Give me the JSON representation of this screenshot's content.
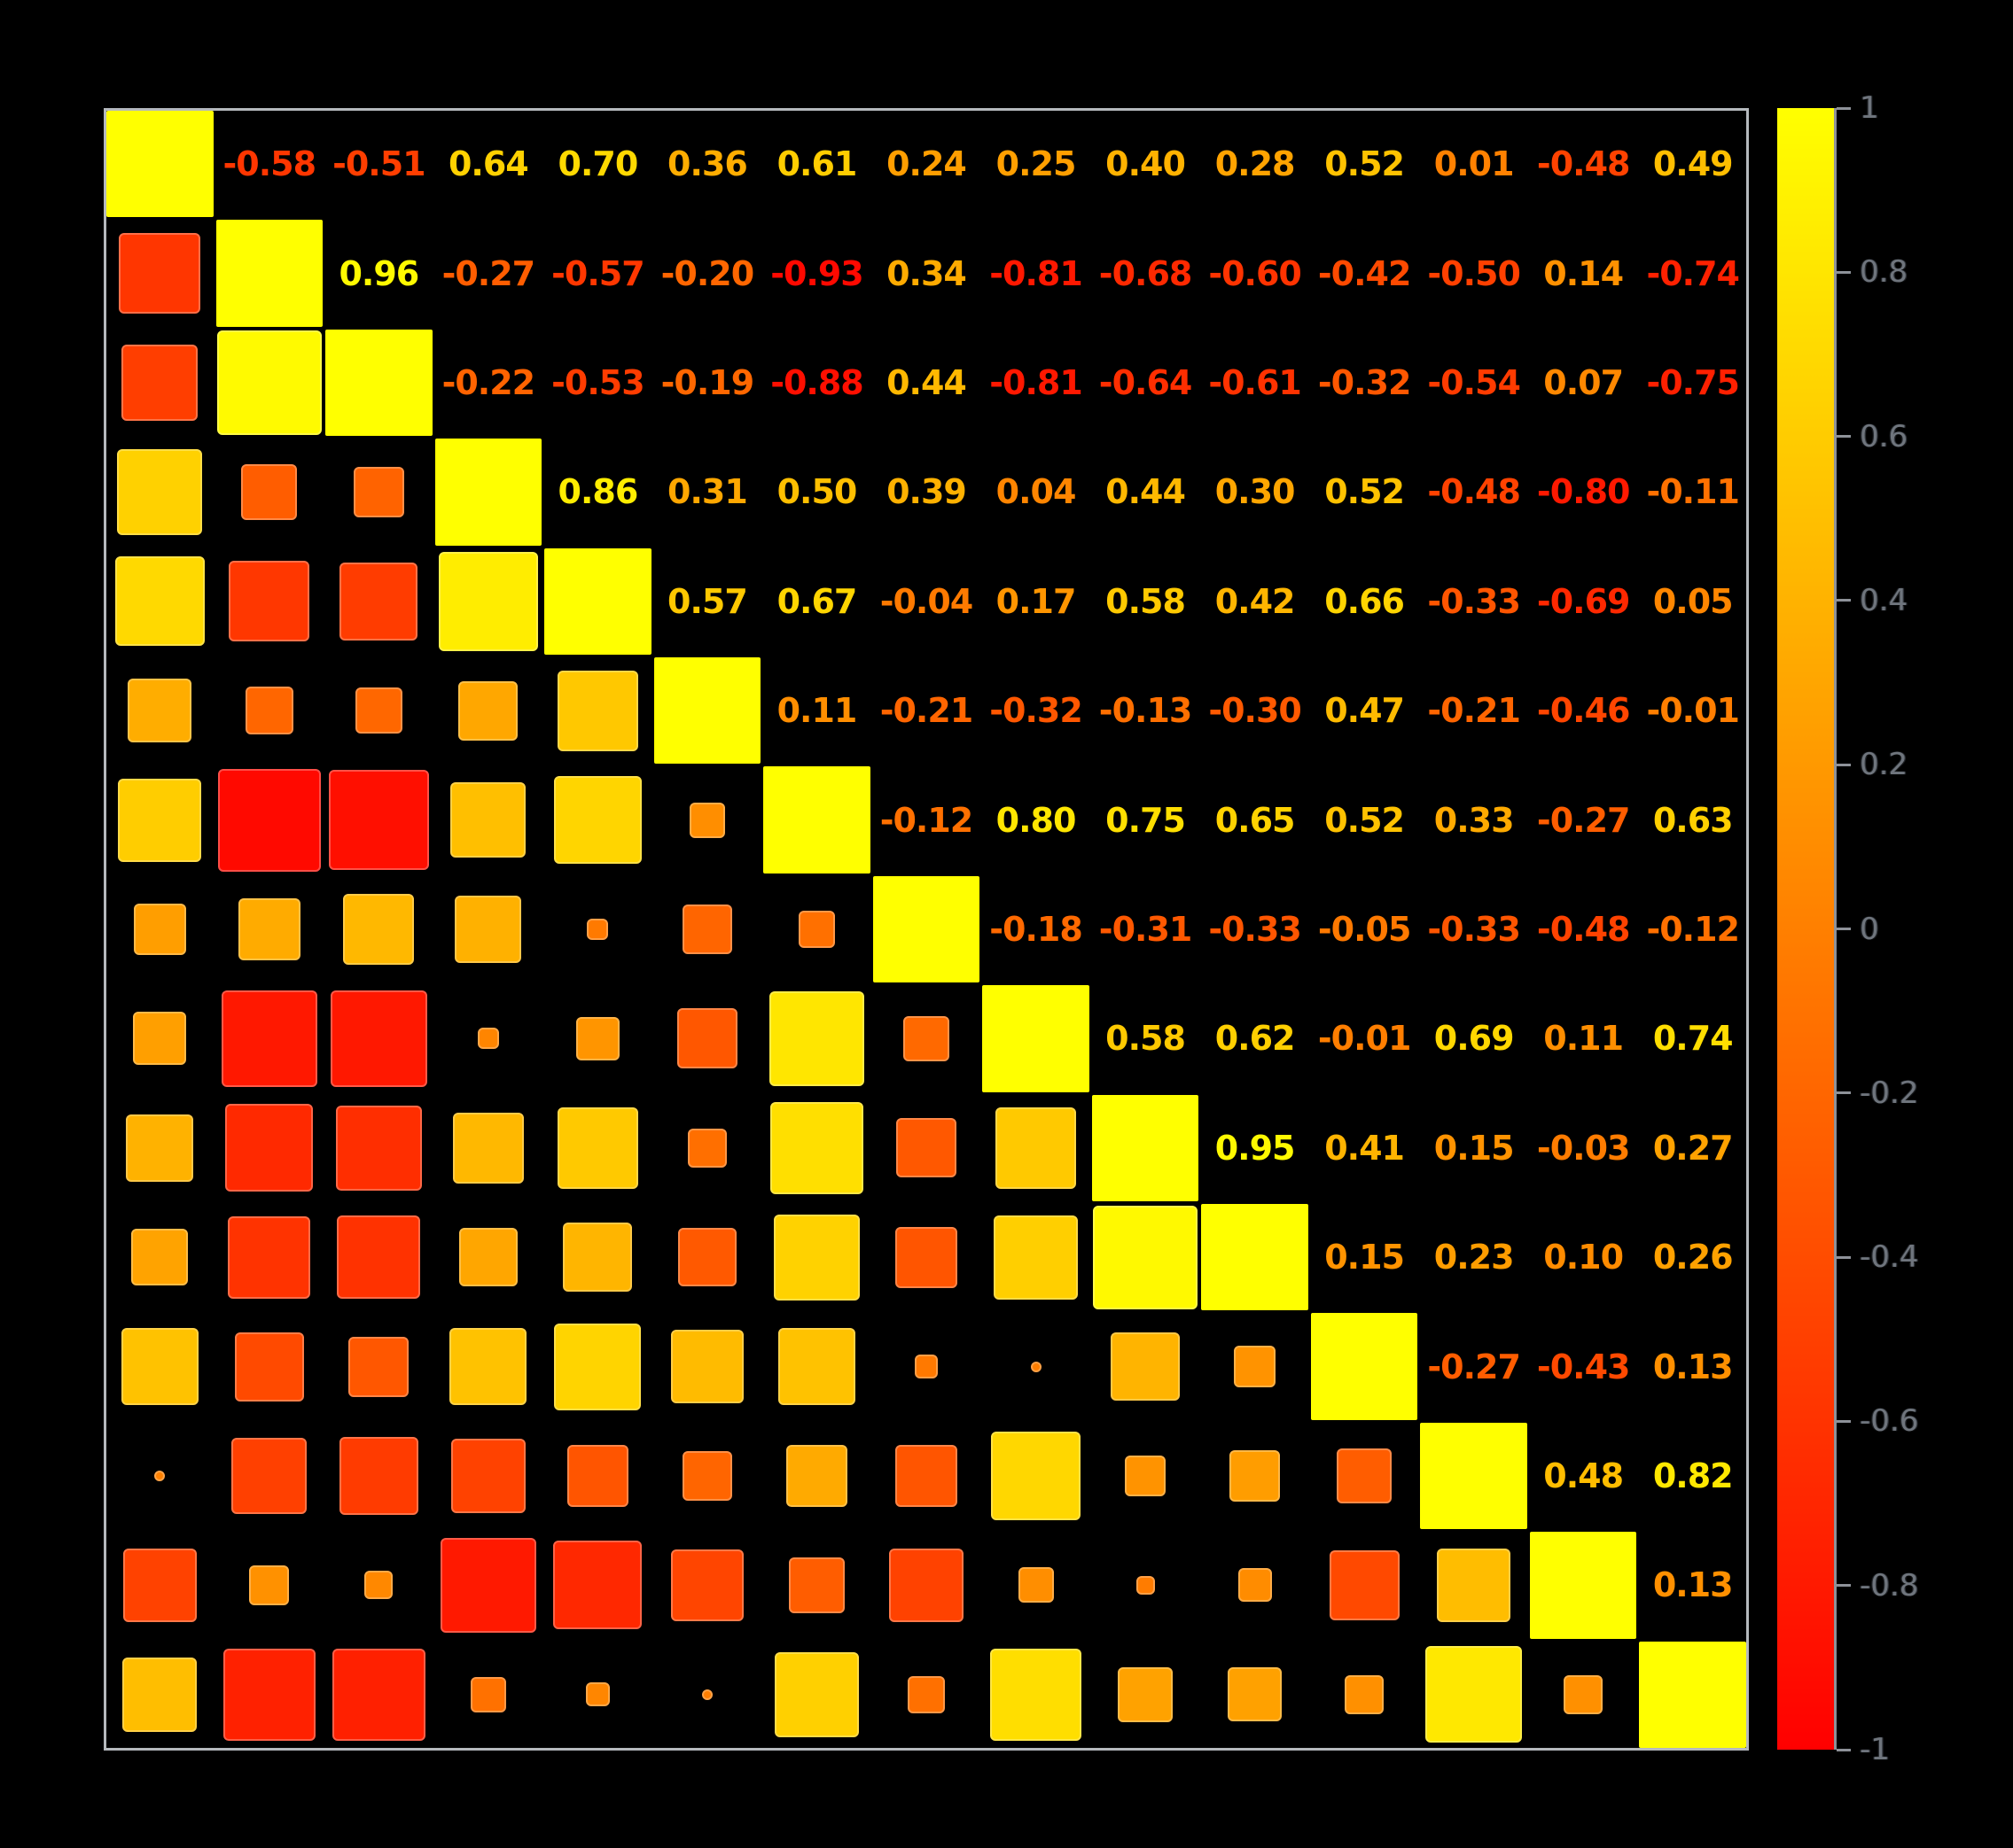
{
  "figure": {
    "background": "#000000",
    "grid_color": "#b5b9bd",
    "accent_colors": {
      "positive_end": "#FFFF00",
      "midpoint": "#FF8000",
      "negative_end": "#FF0000"
    }
  },
  "chart_data": {
    "type": "heatmap",
    "subtype": "correlation-matrix",
    "title": "",
    "size": 15,
    "display": {
      "upper_triangle": "numbers",
      "lower_triangle": "squares-scaled-by-abs-r",
      "diagonal": "full-yellow-squares"
    },
    "value_range": [
      -1,
      1
    ],
    "colormap": {
      "-1": "#FF0000",
      "0": "#FF8000",
      "1": "#FFFF00"
    },
    "upper_triangle": [
      [
        1.0,
        -0.58,
        -0.51,
        0.64,
        0.7,
        0.36,
        0.61,
        0.24,
        0.25,
        0.4,
        0.28,
        0.52,
        0.01,
        -0.48,
        0.49
      ],
      [
        1.0,
        0.96,
        -0.27,
        -0.57,
        -0.2,
        -0.93,
        0.34,
        -0.81,
        -0.68,
        -0.6,
        -0.42,
        -0.5,
        0.14,
        -0.74
      ],
      [
        1.0,
        -0.22,
        -0.53,
        -0.19,
        -0.88,
        0.44,
        -0.81,
        -0.64,
        -0.61,
        -0.32,
        -0.54,
        0.07,
        -0.75
      ],
      [
        1.0,
        0.86,
        0.31,
        0.5,
        0.39,
        0.04,
        0.44,
        0.3,
        0.52,
        -0.48,
        -0.8,
        -0.11
      ],
      [
        1.0,
        0.57,
        0.67,
        -0.04,
        0.17,
        0.58,
        0.42,
        0.66,
        -0.33,
        -0.69,
        0.05
      ],
      [
        1.0,
        0.11,
        -0.21,
        -0.32,
        -0.13,
        -0.3,
        0.47,
        -0.21,
        -0.46,
        -0.01
      ],
      [
        1.0,
        -0.12,
        0.8,
        0.75,
        0.65,
        0.52,
        0.33,
        -0.27,
        0.63
      ],
      [
        1.0,
        -0.18,
        -0.31,
        -0.33,
        -0.05,
        -0.33,
        -0.48,
        -0.12
      ],
      [
        1.0,
        0.58,
        0.62,
        -0.01,
        0.69,
        0.11,
        0.74
      ],
      [
        1.0,
        0.95,
        0.41,
        0.15,
        -0.03,
        0.27
      ],
      [
        1.0,
        0.15,
        0.23,
        0.1,
        0.26
      ],
      [
        1.0,
        -0.27,
        -0.43,
        0.13
      ],
      [
        1.0,
        0.48,
        0.82
      ],
      [
        1.0,
        0.13
      ],
      [
        1.0
      ]
    ],
    "colorbar": {
      "orientation": "vertical",
      "position": "right",
      "top_value": 1,
      "bottom_value": -1,
      "tick_labels": [
        "1",
        "0.8",
        "0.6",
        "0.4",
        "0.2",
        "0",
        "-0.2",
        "-0.4",
        "-0.6",
        "-0.8",
        "-1"
      ]
    }
  }
}
